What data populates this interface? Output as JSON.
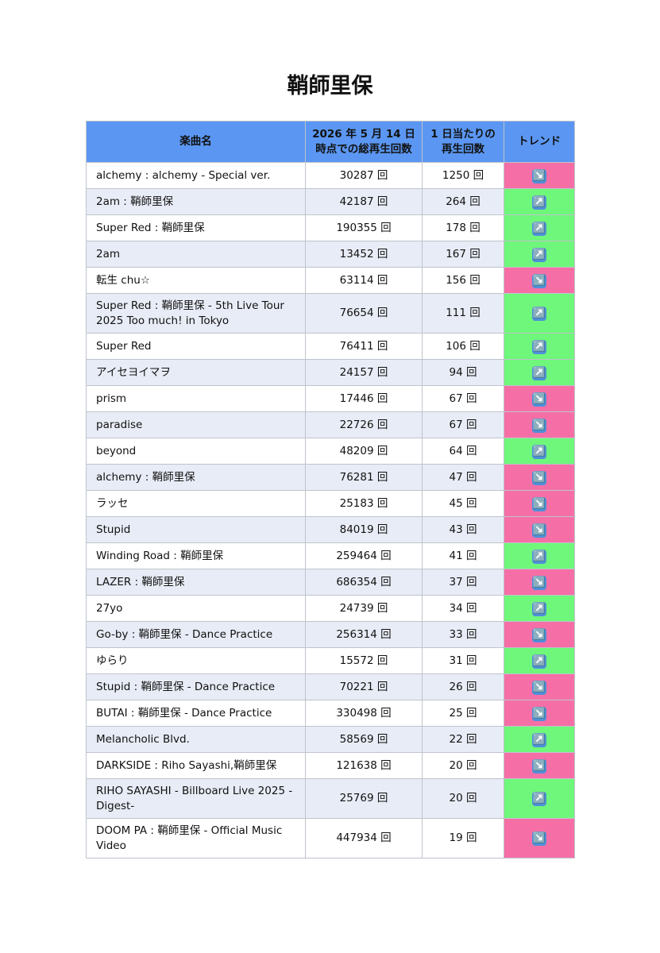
{
  "title": "鞘師里保",
  "table": {
    "headers": [
      "楽曲名",
      "2026 年 5 月 14 日\n時点での総再生回数",
      "1 日当たりの\n再生回数",
      "トレンド"
    ],
    "rows": [
      {
        "song": "alchemy : alchemy - Special ver.",
        "total": "30287 回",
        "daily": "1250 回",
        "trend": "↘️",
        "color": "#f56fa6"
      },
      {
        "song": "2am : 鞘師里保",
        "total": "42187 回",
        "daily": "264 回",
        "trend": "↗️",
        "color": "#6ef77a"
      },
      {
        "song": "Super Red : 鞘師里保",
        "total": "190355 回",
        "daily": "178 回",
        "trend": "↗️",
        "color": "#6ef77a"
      },
      {
        "song": "2am",
        "total": "13452 回",
        "daily": "167 回",
        "trend": "↗️",
        "color": "#6ef77a"
      },
      {
        "song": "転生 chu☆",
        "total": "63114 回",
        "daily": "156 回",
        "trend": "↘️",
        "color": "#f56fa6"
      },
      {
        "song": "Super Red : 鞘師里保 - 5th Live Tour 2025 Too much! in Tokyo",
        "total": "76654 回",
        "daily": "111 回",
        "trend": "↗️",
        "color": "#6ef77a"
      },
      {
        "song": "Super Red",
        "total": "76411 回",
        "daily": "106 回",
        "trend": "↗️",
        "color": "#6ef77a"
      },
      {
        "song": "アイセヨイマヲ",
        "total": "24157 回",
        "daily": "94 回",
        "trend": "↗️",
        "color": "#6ef77a"
      },
      {
        "song": "prism",
        "total": "17446 回",
        "daily": "67 回",
        "trend": "↘️",
        "color": "#f56fa6"
      },
      {
        "song": "paradise",
        "total": "22726 回",
        "daily": "67 回",
        "trend": "↘️",
        "color": "#f56fa6"
      },
      {
        "song": "beyond",
        "total": "48209 回",
        "daily": "64 回",
        "trend": "↗️",
        "color": "#6ef77a"
      },
      {
        "song": "alchemy : 鞘師里保",
        "total": "76281 回",
        "daily": "47 回",
        "trend": "↘️",
        "color": "#f56fa6"
      },
      {
        "song": "ラッセ",
        "total": "25183 回",
        "daily": "45 回",
        "trend": "↘️",
        "color": "#f56fa6"
      },
      {
        "song": "Stupid",
        "total": "84019 回",
        "daily": "43 回",
        "trend": "↘️",
        "color": "#f56fa6"
      },
      {
        "song": "Winding Road : 鞘師里保",
        "total": "259464 回",
        "daily": "41 回",
        "trend": "↗️",
        "color": "#6ef77a"
      },
      {
        "song": "LAZER : 鞘師里保",
        "total": "686354 回",
        "daily": "37 回",
        "trend": "↘️",
        "color": "#f56fa6"
      },
      {
        "song": "27yo",
        "total": "24739 回",
        "daily": "34 回",
        "trend": "↗️",
        "color": "#6ef77a"
      },
      {
        "song": "Go-by : 鞘師里保 - Dance Practice",
        "total": "256314 回",
        "daily": "33 回",
        "trend": "↘️",
        "color": "#f56fa6"
      },
      {
        "song": "ゆらり",
        "total": "15572 回",
        "daily": "31 回",
        "trend": "↗️",
        "color": "#6ef77a"
      },
      {
        "song": "Stupid : 鞘師里保 - Dance Practice",
        "total": "70221 回",
        "daily": "26 回",
        "trend": "↘️",
        "color": "#f56fa6"
      },
      {
        "song": "BUTAI : 鞘師里保 - Dance Practice",
        "total": "330498 回",
        "daily": "25 回",
        "trend": "↘️",
        "color": "#f56fa6"
      },
      {
        "song": "Melancholic Blvd.",
        "total": "58569 回",
        "daily": "22 回",
        "trend": "↗️",
        "color": "#6ef77a"
      },
      {
        "song": "DARKSIDE : Riho Sayashi,鞘師里保",
        "total": "121638 回",
        "daily": "20 回",
        "trend": "↘️",
        "color": "#f56fa6"
      },
      {
        "song": "RIHO SAYASHI - Billboard Live 2025 - Digest-",
        "total": "25769 回",
        "daily": "20 回",
        "trend": "↗️",
        "color": "#6ef77a"
      },
      {
        "song": "DOOM PA : 鞘師里保 - Official Music Video",
        "total": "447934 回",
        "daily": "19 回",
        "trend": "↘️",
        "color": "#f56fa6"
      }
    ]
  }
}
